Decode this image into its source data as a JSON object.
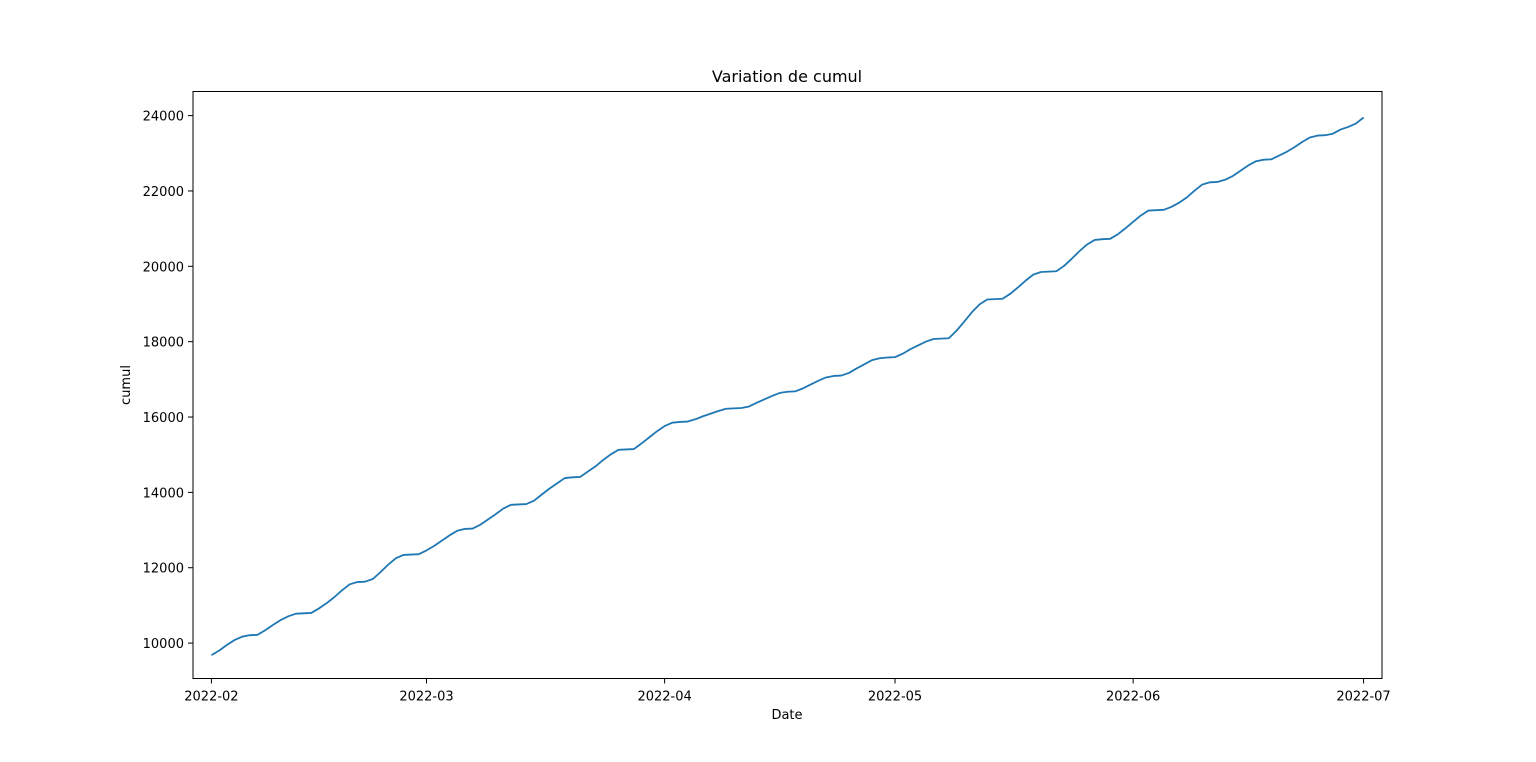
{
  "chart_data": {
    "type": "line",
    "title": "Variation de cumul",
    "xlabel": "Date",
    "ylabel": "cumul",
    "x_range_days": [
      -2.4,
      152.4
    ],
    "ylim": [
      9060,
      24640
    ],
    "x_ticks": [
      {
        "day": 0,
        "label": "2022-02"
      },
      {
        "day": 28,
        "label": "2022-03"
      },
      {
        "day": 59,
        "label": "2022-04"
      },
      {
        "day": 89,
        "label": "2022-05"
      },
      {
        "day": 120,
        "label": "2022-06"
      },
      {
        "day": 150,
        "label": "2022-07"
      }
    ],
    "y_ticks": [
      {
        "value": 10000,
        "label": "10000"
      },
      {
        "value": 12000,
        "label": "12000"
      },
      {
        "value": 14000,
        "label": "14000"
      },
      {
        "value": 16000,
        "label": "16000"
      },
      {
        "value": 18000,
        "label": "18000"
      },
      {
        "value": 20000,
        "label": "20000"
      },
      {
        "value": 22000,
        "label": "22000"
      },
      {
        "value": 24000,
        "label": "24000"
      }
    ],
    "grid": false,
    "series": [
      {
        "name": "cumul",
        "color": "#1f77b4",
        "x_days": [
          0,
          1,
          2,
          3,
          4,
          5,
          6,
          7,
          8,
          9,
          10,
          11,
          12,
          13,
          14,
          15,
          16,
          17,
          18,
          19,
          20,
          21,
          22,
          23,
          24,
          25,
          26,
          27,
          28,
          29,
          30,
          31,
          32,
          33,
          34,
          35,
          36,
          37,
          38,
          39,
          40,
          41,
          42,
          43,
          44,
          45,
          46,
          47,
          48,
          49,
          50,
          51,
          52,
          53,
          54,
          55,
          56,
          57,
          58,
          59,
          60,
          61,
          62,
          63,
          64,
          65,
          66,
          67,
          68,
          69,
          70,
          71,
          72,
          73,
          74,
          75,
          76,
          77,
          78,
          79,
          80,
          81,
          82,
          83,
          84,
          85,
          86,
          87,
          88,
          89,
          90,
          91,
          92,
          93,
          94,
          95,
          96,
          97,
          98,
          99,
          100,
          101,
          102,
          103,
          104,
          105,
          106,
          107,
          108,
          109,
          110,
          111,
          112,
          113,
          114,
          115,
          116,
          117,
          118,
          119,
          120,
          121,
          122,
          123,
          124,
          125,
          126,
          127,
          128,
          129,
          130,
          131,
          132,
          133,
          134,
          135,
          136,
          137,
          138,
          139,
          140,
          141,
          142,
          143,
          144,
          145,
          146,
          147,
          148,
          149,
          150
        ],
        "values": [
          9680,
          9800,
          9950,
          10080,
          10170,
          10210,
          10220,
          10340,
          10480,
          10610,
          10710,
          10780,
          10790,
          10800,
          10920,
          11060,
          11220,
          11400,
          11560,
          11620,
          11630,
          11700,
          11880,
          12080,
          12250,
          12340,
          12350,
          12360,
          12460,
          12580,
          12720,
          12860,
          12980,
          13030,
          13040,
          13140,
          13280,
          13420,
          13570,
          13670,
          13680,
          13690,
          13780,
          13940,
          14100,
          14240,
          14380,
          14400,
          14410,
          14550,
          14690,
          14860,
          15010,
          15130,
          15140,
          15150,
          15300,
          15460,
          15620,
          15760,
          15850,
          15870,
          15880,
          15940,
          16020,
          16090,
          16160,
          16220,
          16230,
          16240,
          16280,
          16380,
          16470,
          16560,
          16640,
          16670,
          16680,
          16760,
          16860,
          16960,
          17050,
          17090,
          17100,
          17170,
          17290,
          17400,
          17510,
          17560,
          17580,
          17590,
          17680,
          17800,
          17900,
          18000,
          18070,
          18080,
          18090,
          18290,
          18530,
          18780,
          18990,
          19120,
          19130,
          19140,
          19270,
          19440,
          19620,
          19780,
          19850,
          19860,
          19870,
          20010,
          20200,
          20400,
          20580,
          20700,
          20720,
          20730,
          20850,
          21010,
          21180,
          21350,
          21480,
          21490,
          21500,
          21580,
          21690,
          21830,
          22010,
          22170,
          22230,
          22240,
          22300,
          22400,
          22540,
          22680,
          22790,
          22830,
          22840,
          22940,
          23040,
          23160,
          23300,
          23420,
          23470,
          23480,
          23520,
          23630,
          23700,
          23790,
          23950
        ]
      }
    ]
  }
}
